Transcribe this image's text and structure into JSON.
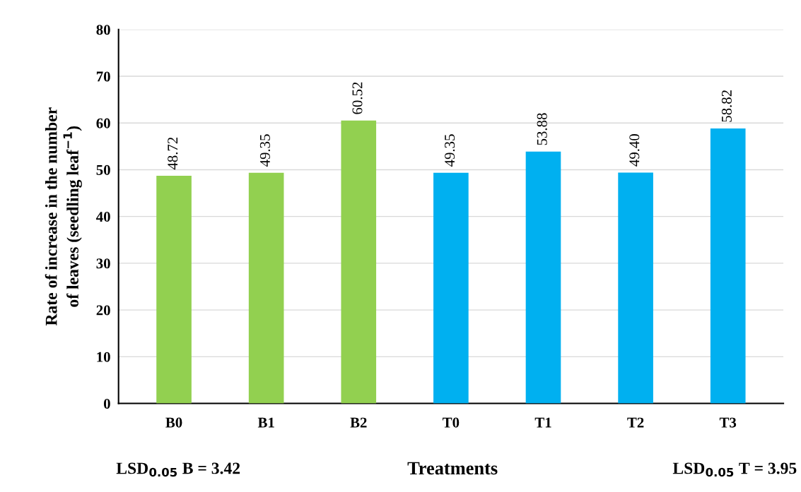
{
  "chart_data": {
    "type": "bar",
    "xlabel": "Treatments",
    "ylabel": "Rate of increase in the number\nof leaves (seedling leaf$^{−1}$)",
    "categories": [
      "B0",
      "B1",
      "B2",
      "T0",
      "T1",
      "T2",
      "T3"
    ],
    "values": [
      48.72,
      49.35,
      60.52,
      49.35,
      53.88,
      49.4,
      58.82
    ],
    "value_labels": [
      "48.72",
      "49.35",
      "60.52",
      "49.35",
      "53.88",
      "49.40",
      "58.82"
    ],
    "colors": [
      "#92d050",
      "#92d050",
      "#92d050",
      "#00b0f0",
      "#00b0f0",
      "#00b0f0",
      "#00b0f0"
    ],
    "ylim": [
      0,
      80
    ],
    "yticks": [
      0,
      10,
      20,
      30,
      40,
      50,
      60,
      70,
      80
    ],
    "grid": "y",
    "annotations": [
      "LSD$_{0.05}$ B = 3.42",
      "LSD$_{0.05}$ T = 3.95"
    ]
  }
}
